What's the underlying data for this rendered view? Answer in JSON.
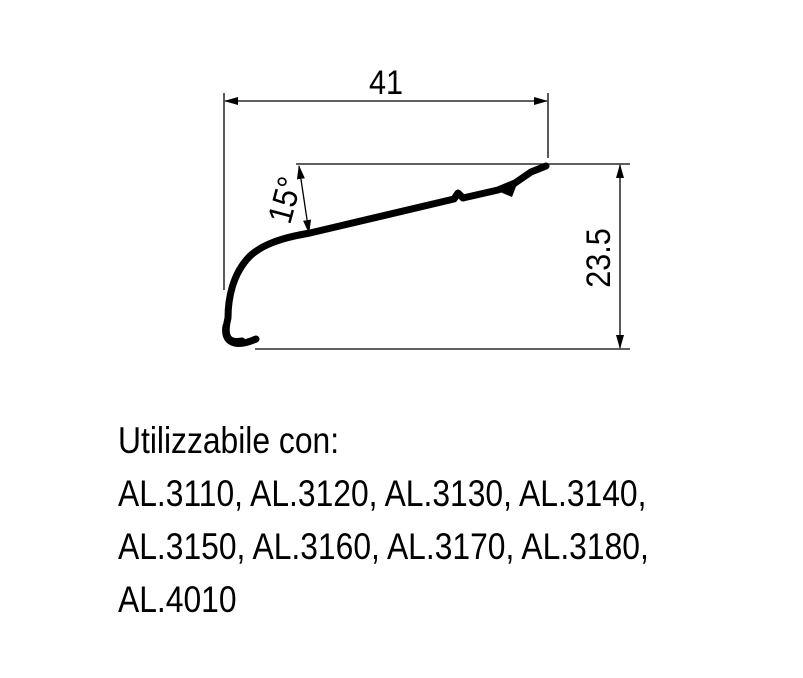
{
  "drawing": {
    "dimensions": {
      "width": "41",
      "height": "23.5",
      "angle": "15°"
    }
  },
  "caption": {
    "heading": "Utilizzabile con:",
    "lines": [
      "AL.3110, AL.3120, AL.3130, AL.3140,",
      "AL.3150, AL.3160, AL.3170, AL.3180,",
      "AL.4010"
    ]
  }
}
